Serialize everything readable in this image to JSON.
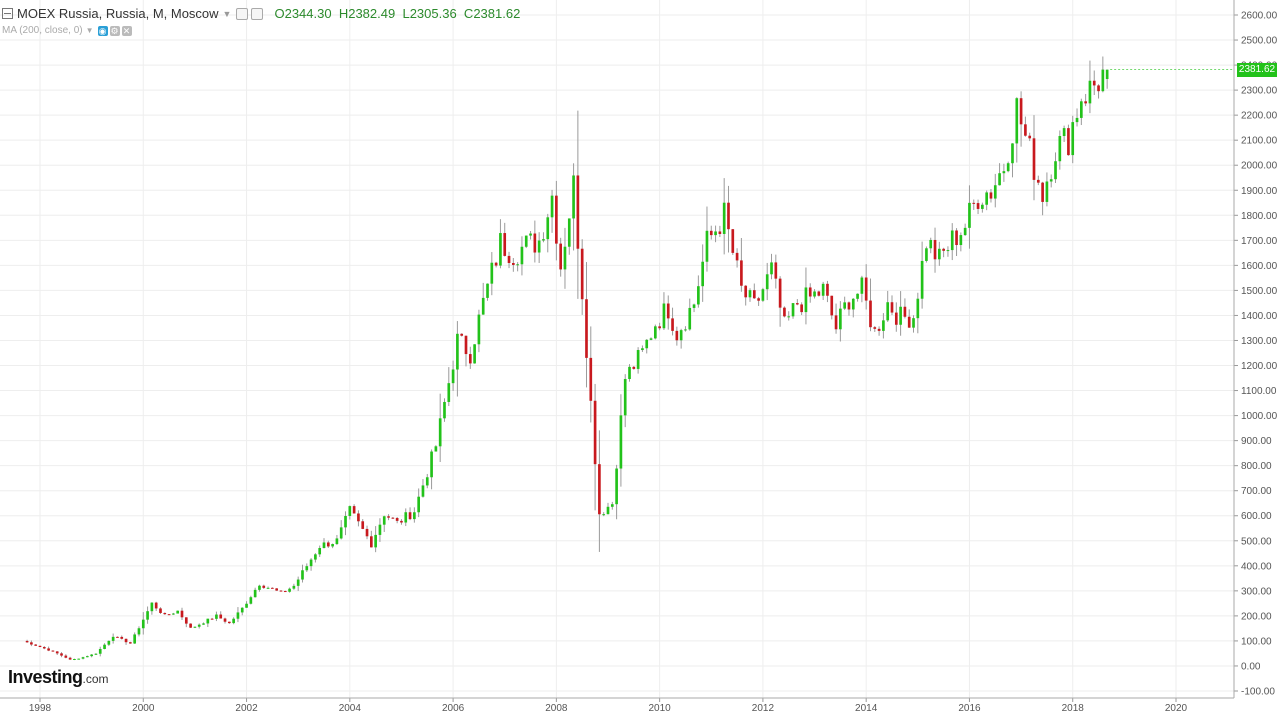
{
  "legend": {
    "symbol": "MOEX Russia, Russia, M, Moscow",
    "open_label": "O",
    "open": "2344.30",
    "high_label": "H",
    "high": "2382.49",
    "low_label": "L",
    "low": "2305.36",
    "close_label": "C",
    "close": "2381.62"
  },
  "indicator": {
    "label": "MA (200, close, 0)"
  },
  "brand": {
    "name": "Investing",
    "suffix": ".com"
  },
  "last_price_tag": "2381.62",
  "colors": {
    "up": "#22c21a",
    "down": "#c8191e",
    "wick": "#9a9a9a",
    "grid": "#eeeeee",
    "axis_text": "#555555",
    "last_price_bg": "#22c21a"
  },
  "chart_data": {
    "type": "candlestick",
    "title": "",
    "xlabel": "",
    "ylabel": "",
    "x_ticks": [
      "1998",
      "2000",
      "2002",
      "2004",
      "2006",
      "2008",
      "2010",
      "2012",
      "2014",
      "2016",
      "2018",
      "2020"
    ],
    "y_ticks": [
      "-100.00",
      "0.00",
      "100.00",
      "200.00",
      "300.00",
      "400.00",
      "500.00",
      "600.00",
      "700.00",
      "800.00",
      "900.00",
      "1000.00",
      "1100.00",
      "1200.00",
      "1300.00",
      "1400.00",
      "1500.00",
      "1600.00",
      "1700.00",
      "1800.00",
      "1900.00",
      "2000.00",
      "2100.00",
      "2200.00",
      "2300.00",
      "2400.00",
      "2500.00",
      "2600.00"
    ],
    "ylim": [
      -100,
      2650
    ],
    "xlim": [
      1997.5,
      2021.0
    ],
    "grid": true,
    "interval": "M",
    "close_path": [
      [
        "1997-09",
        100
      ],
      [
        "1998-02",
        70
      ],
      [
        "1998-05",
        50
      ],
      [
        "1998-08",
        25
      ],
      [
        "1998-10",
        30
      ],
      [
        "1999-02",
        50
      ],
      [
        "1999-06",
        120
      ],
      [
        "1999-10",
        90
      ],
      [
        "2000-03",
        250
      ],
      [
        "2000-06",
        200
      ],
      [
        "2000-09",
        220
      ],
      [
        "2000-12",
        150
      ],
      [
        "2001-06",
        200
      ],
      [
        "2001-09",
        170
      ],
      [
        "2001-12",
        230
      ],
      [
        "2002-04",
        330
      ],
      [
        "2002-09",
        290
      ],
      [
        "2002-12",
        320
      ],
      [
        "2003-06",
        480
      ],
      [
        "2003-10",
        500
      ],
      [
        "2004-01",
        620
      ],
      [
        "2004-06",
        490
      ],
      [
        "2004-09",
        610
      ],
      [
        "2004-12",
        570
      ],
      [
        "2005-04",
        620
      ],
      [
        "2005-09",
        880
      ],
      [
        "2006-02",
        1300
      ],
      [
        "2006-05",
        1250
      ],
      [
        "2006-08",
        1450
      ],
      [
        "2006-12",
        1690
      ],
      [
        "2007-03",
        1650
      ],
      [
        "2007-06",
        1680
      ],
      [
        "2007-09",
        1700
      ],
      [
        "2007-12",
        1880
      ],
      [
        "2008-02",
        1600
      ],
      [
        "2008-05",
        1920
      ],
      [
        "2008-07",
        1500
      ],
      [
        "2008-09",
        1050
      ],
      [
        "2008-11",
        610
      ],
      [
        "2009-02",
        650
      ],
      [
        "2009-05",
        1150
      ],
      [
        "2009-09",
        1250
      ],
      [
        "2009-12",
        1370
      ],
      [
        "2010-03",
        1430
      ],
      [
        "2010-05",
        1330
      ],
      [
        "2010-09",
        1450
      ],
      [
        "2010-12",
        1690
      ],
      [
        "2011-04",
        1800
      ],
      [
        "2011-08",
        1500
      ],
      [
        "2011-11",
        1430
      ],
      [
        "2012-03",
        1580
      ],
      [
        "2012-06",
        1350
      ],
      [
        "2012-09",
        1450
      ],
      [
        "2012-12",
        1470
      ],
      [
        "2013-03",
        1500
      ],
      [
        "2013-06",
        1350
      ],
      [
        "2013-09",
        1470
      ],
      [
        "2013-12",
        1500
      ],
      [
        "2014-03",
        1330
      ],
      [
        "2014-06",
        1450
      ],
      [
        "2014-09",
        1390
      ],
      [
        "2014-12",
        1400
      ],
      [
        "2015-03",
        1700
      ],
      [
        "2015-06",
        1620
      ],
      [
        "2015-09",
        1700
      ],
      [
        "2015-12",
        1760
      ],
      [
        "2016-03",
        1880
      ],
      [
        "2016-06",
        1900
      ],
      [
        "2016-09",
        2000
      ],
      [
        "2016-12",
        2230
      ],
      [
        "2017-03",
        2050
      ],
      [
        "2017-06",
        1890
      ],
      [
        "2017-09",
        2070
      ],
      [
        "2017-12",
        2110
      ],
      [
        "2018-03",
        2280
      ],
      [
        "2018-05",
        2300
      ],
      [
        "2018-07",
        2340
      ],
      [
        "2018-09",
        2381.62
      ]
    ],
    "last": {
      "open": 2344.3,
      "high": 2382.49,
      "low": 2305.36,
      "close": 2381.62
    }
  }
}
